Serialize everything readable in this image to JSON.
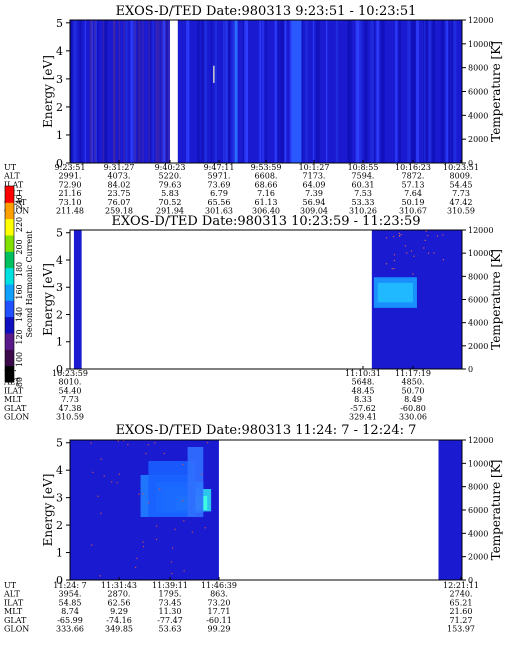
{
  "colors": {
    "background_deep_blue": "#1a1ad0",
    "blue_bright": "#2a44ff",
    "cyan": "#38e0f0",
    "green": "#00a060",
    "white_gap": "#ffffff"
  },
  "colorbar": {
    "title": "Second Harmonic Current",
    "ticks": [
      "240",
      "220",
      "200",
      "180",
      "160",
      "140",
      "120",
      "100",
      "80"
    ],
    "colors": [
      "#000000",
      "#3a0a4a",
      "#5a1a8a",
      "#1010c0",
      "#2050ff",
      "#10a0ff",
      "#00e0e0",
      "#00c060",
      "#80e000",
      "#ffff00",
      "#ffa000",
      "#ff0000"
    ]
  },
  "chart_data": [
    {
      "type": "heatmap",
      "title": "EXOS-D/TED   Date:980313   9:23:51 - 10:23:51",
      "ylabel": "Energy [eV]",
      "y2label": "Temperature [K]",
      "ylim": [
        0,
        5.1
      ],
      "y2lim": [
        0,
        12000
      ],
      "yticks": [
        "0",
        "1",
        "2",
        "3",
        "4",
        "5"
      ],
      "y2ticks": [
        "0",
        "2000",
        "4000",
        "6000",
        "8000",
        "10000",
        "12000"
      ],
      "rows": [
        {
          "label": "UT",
          "values": [
            "9:23:51",
            "9:31:27",
            "9:40:23",
            "9:47:11",
            "9:53:59",
            "10:1:27",
            "10:8:55",
            "10:16:23",
            "10:23:51"
          ]
        },
        {
          "label": "ALT",
          "values": [
            "2991.",
            "4073.",
            "5220.",
            "5971.",
            "6608.",
            "7173.",
            "7594.",
            "7872.",
            "8009."
          ]
        },
        {
          "label": "ILAT",
          "values": [
            "72.90",
            "84.02",
            "79.63",
            "73.69",
            "68.66",
            "64.09",
            "60.31",
            "57.13",
            "54.45"
          ]
        },
        {
          "label": "MLT",
          "values": [
            "21.16",
            "23.75",
            "5.83",
            "6.79",
            "7.16",
            "7.39",
            "7.53",
            "7.64",
            "7.73"
          ]
        },
        {
          "label": "GLAT",
          "values": [
            "73.10",
            "76.07",
            "70.52",
            "65.56",
            "61.13",
            "56.94",
            "53.33",
            "50.19",
            "47.42"
          ]
        },
        {
          "label": "GLON",
          "values": [
            "211.48",
            "259.18",
            "291.94",
            "301.63",
            "306.40",
            "309.04",
            "310.26",
            "310.67",
            "310.59"
          ]
        }
      ]
    },
    {
      "type": "heatmap",
      "title": "EXOS-D/TED   Date:980313   10:23:59 - 11:23:59",
      "ylabel": "Energy [eV]",
      "y2label": "Temperature [K]",
      "ylim": [
        0,
        5.1
      ],
      "y2lim": [
        0,
        12000
      ],
      "yticks": [
        "0",
        "1",
        "2",
        "3",
        "4",
        "5"
      ],
      "y2ticks": [
        "0",
        "2000",
        "4000",
        "6000",
        "8000",
        "10000",
        "12000"
      ],
      "rows": [
        {
          "label": "UT",
          "values": [
            "10:23:59",
            "",
            "",
            "",
            "",
            "",
            "11:10:31",
            "11:17:19",
            ""
          ]
        },
        {
          "label": "ALT",
          "values": [
            "8010.",
            "",
            "",
            "",
            "",
            "",
            "5648.",
            "4850.",
            ""
          ]
        },
        {
          "label": "ILAT",
          "values": [
            "54.40",
            "",
            "",
            "",
            "",
            "",
            "48.45",
            "50.70",
            ""
          ]
        },
        {
          "label": "MLT",
          "values": [
            "7.73",
            "",
            "",
            "",
            "",
            "",
            "8.33",
            "8.49",
            ""
          ]
        },
        {
          "label": "GLAT",
          "values": [
            "47.38",
            "",
            "",
            "",
            "",
            "",
            "-57.62",
            "-60.80",
            ""
          ]
        },
        {
          "label": "GLON",
          "values": [
            "310.59",
            "",
            "",
            "",
            "",
            "",
            "329.41",
            "330.06",
            ""
          ]
        }
      ]
    },
    {
      "type": "heatmap",
      "title": "EXOS-D/TED   Date:980313   11:24: 7 - 12:24: 7",
      "ylabel": "Energy [eV]",
      "y2label": "Temperature [K]",
      "ylim": [
        0,
        5.1
      ],
      "y2lim": [
        0,
        12000
      ],
      "yticks": [
        "0",
        "1",
        "2",
        "3",
        "4",
        "5"
      ],
      "y2ticks": [
        "0",
        "2000",
        "4000",
        "6000",
        "8000",
        "10000",
        "12000"
      ],
      "rows": [
        {
          "label": "UT",
          "values": [
            "11:24: 7",
            "11:31:43",
            "11:39:11",
            "11:46:39",
            "",
            "",
            "",
            "",
            "12:21:11"
          ]
        },
        {
          "label": "ALT",
          "values": [
            "3954.",
            "2870.",
            "1795.",
            "863.",
            "",
            "",
            "",
            "",
            "2740."
          ]
        },
        {
          "label": "ILAT",
          "values": [
            "54.85",
            "62.56",
            "73.45",
            "73.20",
            "",
            "",
            "",
            "",
            "65.21"
          ]
        },
        {
          "label": "MLT",
          "values": [
            "8.74",
            "9.29",
            "11.30",
            "17.71",
            "",
            "",
            "",
            "",
            "21.60"
          ]
        },
        {
          "label": "GLAT",
          "values": [
            "-65.99",
            "-74.16",
            "-77.47",
            "-60.11",
            "",
            "",
            "",
            "",
            "71.27"
          ]
        },
        {
          "label": "GLON",
          "values": [
            "333.66",
            "349.85",
            "53.63",
            "99.29",
            "",
            "",
            "",
            "",
            "153.97"
          ]
        }
      ]
    }
  ]
}
